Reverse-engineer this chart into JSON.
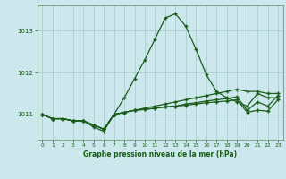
{
  "title": "Graphe pression niveau de la mer (hPa)",
  "background_color": "#cce8ec",
  "grid_color": "#aacdd4",
  "line_color": "#1a5c1a",
  "marker_color": "#1a5c1a",
  "xlim": [
    -0.5,
    23.5
  ],
  "ylim": [
    1010.4,
    1013.6
  ],
  "yticks": [
    1011,
    1012,
    1013
  ],
  "xticks": [
    0,
    1,
    2,
    3,
    4,
    5,
    6,
    7,
    8,
    9,
    10,
    11,
    12,
    13,
    14,
    15,
    16,
    17,
    18,
    19,
    20,
    21,
    22,
    23
  ],
  "series": [
    {
      "x": [
        0,
        1,
        2,
        3,
        4,
        5,
        6,
        7,
        8,
        9,
        10,
        11,
        12,
        13,
        14,
        15,
        16,
        17,
        18,
        19,
        20,
        21,
        22,
        23
      ],
      "y": [
        1011.0,
        1010.9,
        1010.9,
        1010.85,
        1010.85,
        1010.7,
        1010.6,
        1011.0,
        1011.4,
        1011.85,
        1012.3,
        1012.8,
        1013.3,
        1013.4,
        1013.1,
        1012.55,
        1011.95,
        1011.55,
        1011.4,
        1011.3,
        1011.2,
        1011.5,
        1011.4,
        1011.4
      ]
    },
    {
      "x": [
        0,
        1,
        2,
        3,
        4,
        5,
        6,
        7,
        8,
        9,
        10,
        11,
        12,
        13,
        14,
        15,
        16,
        17,
        18,
        19,
        20,
        21,
        22,
        23
      ],
      "y": [
        1011.0,
        1010.9,
        1010.9,
        1010.85,
        1010.85,
        1010.75,
        1010.65,
        1011.0,
        1011.05,
        1011.1,
        1011.15,
        1011.2,
        1011.25,
        1011.3,
        1011.35,
        1011.4,
        1011.45,
        1011.5,
        1011.55,
        1011.6,
        1011.55,
        1011.55,
        1011.5,
        1011.5
      ]
    },
    {
      "x": [
        0,
        1,
        2,
        3,
        4,
        5,
        6,
        7,
        8,
        9,
        10,
        11,
        12,
        13,
        14,
        15,
        16,
        17,
        18,
        19,
        20,
        21,
        22,
        23
      ],
      "y": [
        1011.0,
        1010.9,
        1010.9,
        1010.85,
        1010.85,
        1010.75,
        1010.65,
        1011.0,
        1011.05,
        1011.1,
        1011.12,
        1011.15,
        1011.18,
        1011.2,
        1011.25,
        1011.28,
        1011.32,
        1011.35,
        1011.38,
        1011.42,
        1011.1,
        1011.3,
        1011.2,
        1011.45
      ]
    },
    {
      "x": [
        0,
        1,
        2,
        3,
        4,
        5,
        6,
        7,
        8,
        9,
        10,
        11,
        12,
        13,
        14,
        15,
        16,
        17,
        18,
        19,
        20,
        21,
        22,
        23
      ],
      "y": [
        1011.0,
        1010.9,
        1010.9,
        1010.85,
        1010.85,
        1010.75,
        1010.65,
        1011.0,
        1011.05,
        1011.1,
        1011.12,
        1011.15,
        1011.18,
        1011.2,
        1011.22,
        1011.25,
        1011.28,
        1011.3,
        1011.32,
        1011.35,
        1011.05,
        1011.1,
        1011.08,
        1011.35
      ]
    }
  ]
}
